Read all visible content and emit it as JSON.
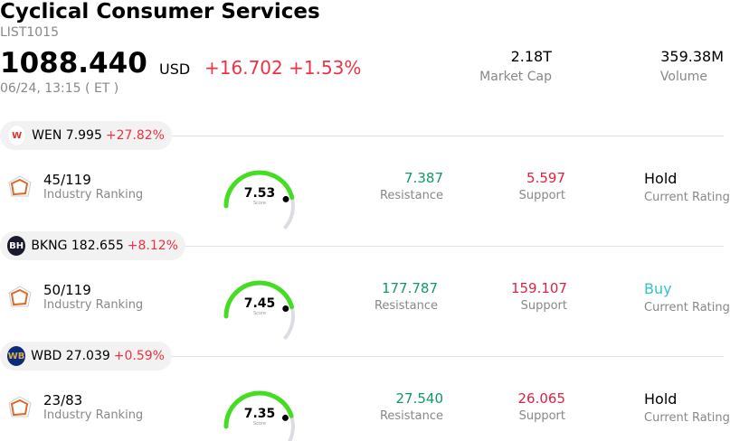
{
  "header": {
    "title": "Cyclical Consumer Services",
    "code": "LIST1015",
    "price": "1088.440",
    "currency": "USD",
    "change": "+16.702",
    "change_pct": "+1.53%",
    "datetime": "06/24, 13:15  ( ET )",
    "market_cap_value": "2.18T",
    "market_cap_label": "Market Cap",
    "volume_value": "359.38M",
    "volume_label": "Volume"
  },
  "stocks": [
    {
      "ticker_line": "WEN 7.995",
      "change_pct": "+27.82%",
      "logo_text": "W",
      "logo_color": "#e03030",
      "logo_bg": "#ffffff",
      "rank_value": "45/119",
      "rank_label": "Industry Ranking",
      "score": "7.53",
      "score_fraction": 0.753,
      "score_label": "Score",
      "resistance_value": "7.387",
      "resistance_label": "Resistance",
      "support_value": "5.597",
      "support_label": "Support",
      "rating": "Hold",
      "rating_label": "Current Rating"
    },
    {
      "ticker_line": "BKNG 182.655",
      "change_pct": "+8.12%",
      "logo_text": "BH",
      "logo_color": "#ffffff",
      "logo_bg": "#1a1a2e",
      "rank_value": "50/119",
      "rank_label": "Industry Ranking",
      "score": "7.45",
      "score_fraction": 0.745,
      "score_label": "Score",
      "resistance_value": "177.787",
      "resistance_label": "Resistance",
      "support_value": "159.107",
      "support_label": "Support",
      "rating": "Buy",
      "rating_label": "Current Rating"
    },
    {
      "ticker_line": "WBD 27.039",
      "change_pct": "+0.59%",
      "logo_text": "WB",
      "logo_color": "#d8b04a",
      "logo_bg": "#0a2a7a",
      "rank_value": "23/83",
      "rank_label": "Industry Ranking",
      "score": "7.35",
      "score_fraction": 0.735,
      "score_label": "Score",
      "resistance_value": "27.540",
      "resistance_label": "Resistance",
      "support_value": "26.065",
      "support_label": "Support",
      "rating": "Hold",
      "rating_label": "Current Rating"
    }
  ],
  "colors": {
    "up": "#ee3344",
    "gauge_fill": "#44dd22",
    "gauge_track": "#dcdce4",
    "resistance": "#119966",
    "support": "#dd2244",
    "buy": "#33c4c4",
    "ranking_icon": "#d86a2a"
  }
}
